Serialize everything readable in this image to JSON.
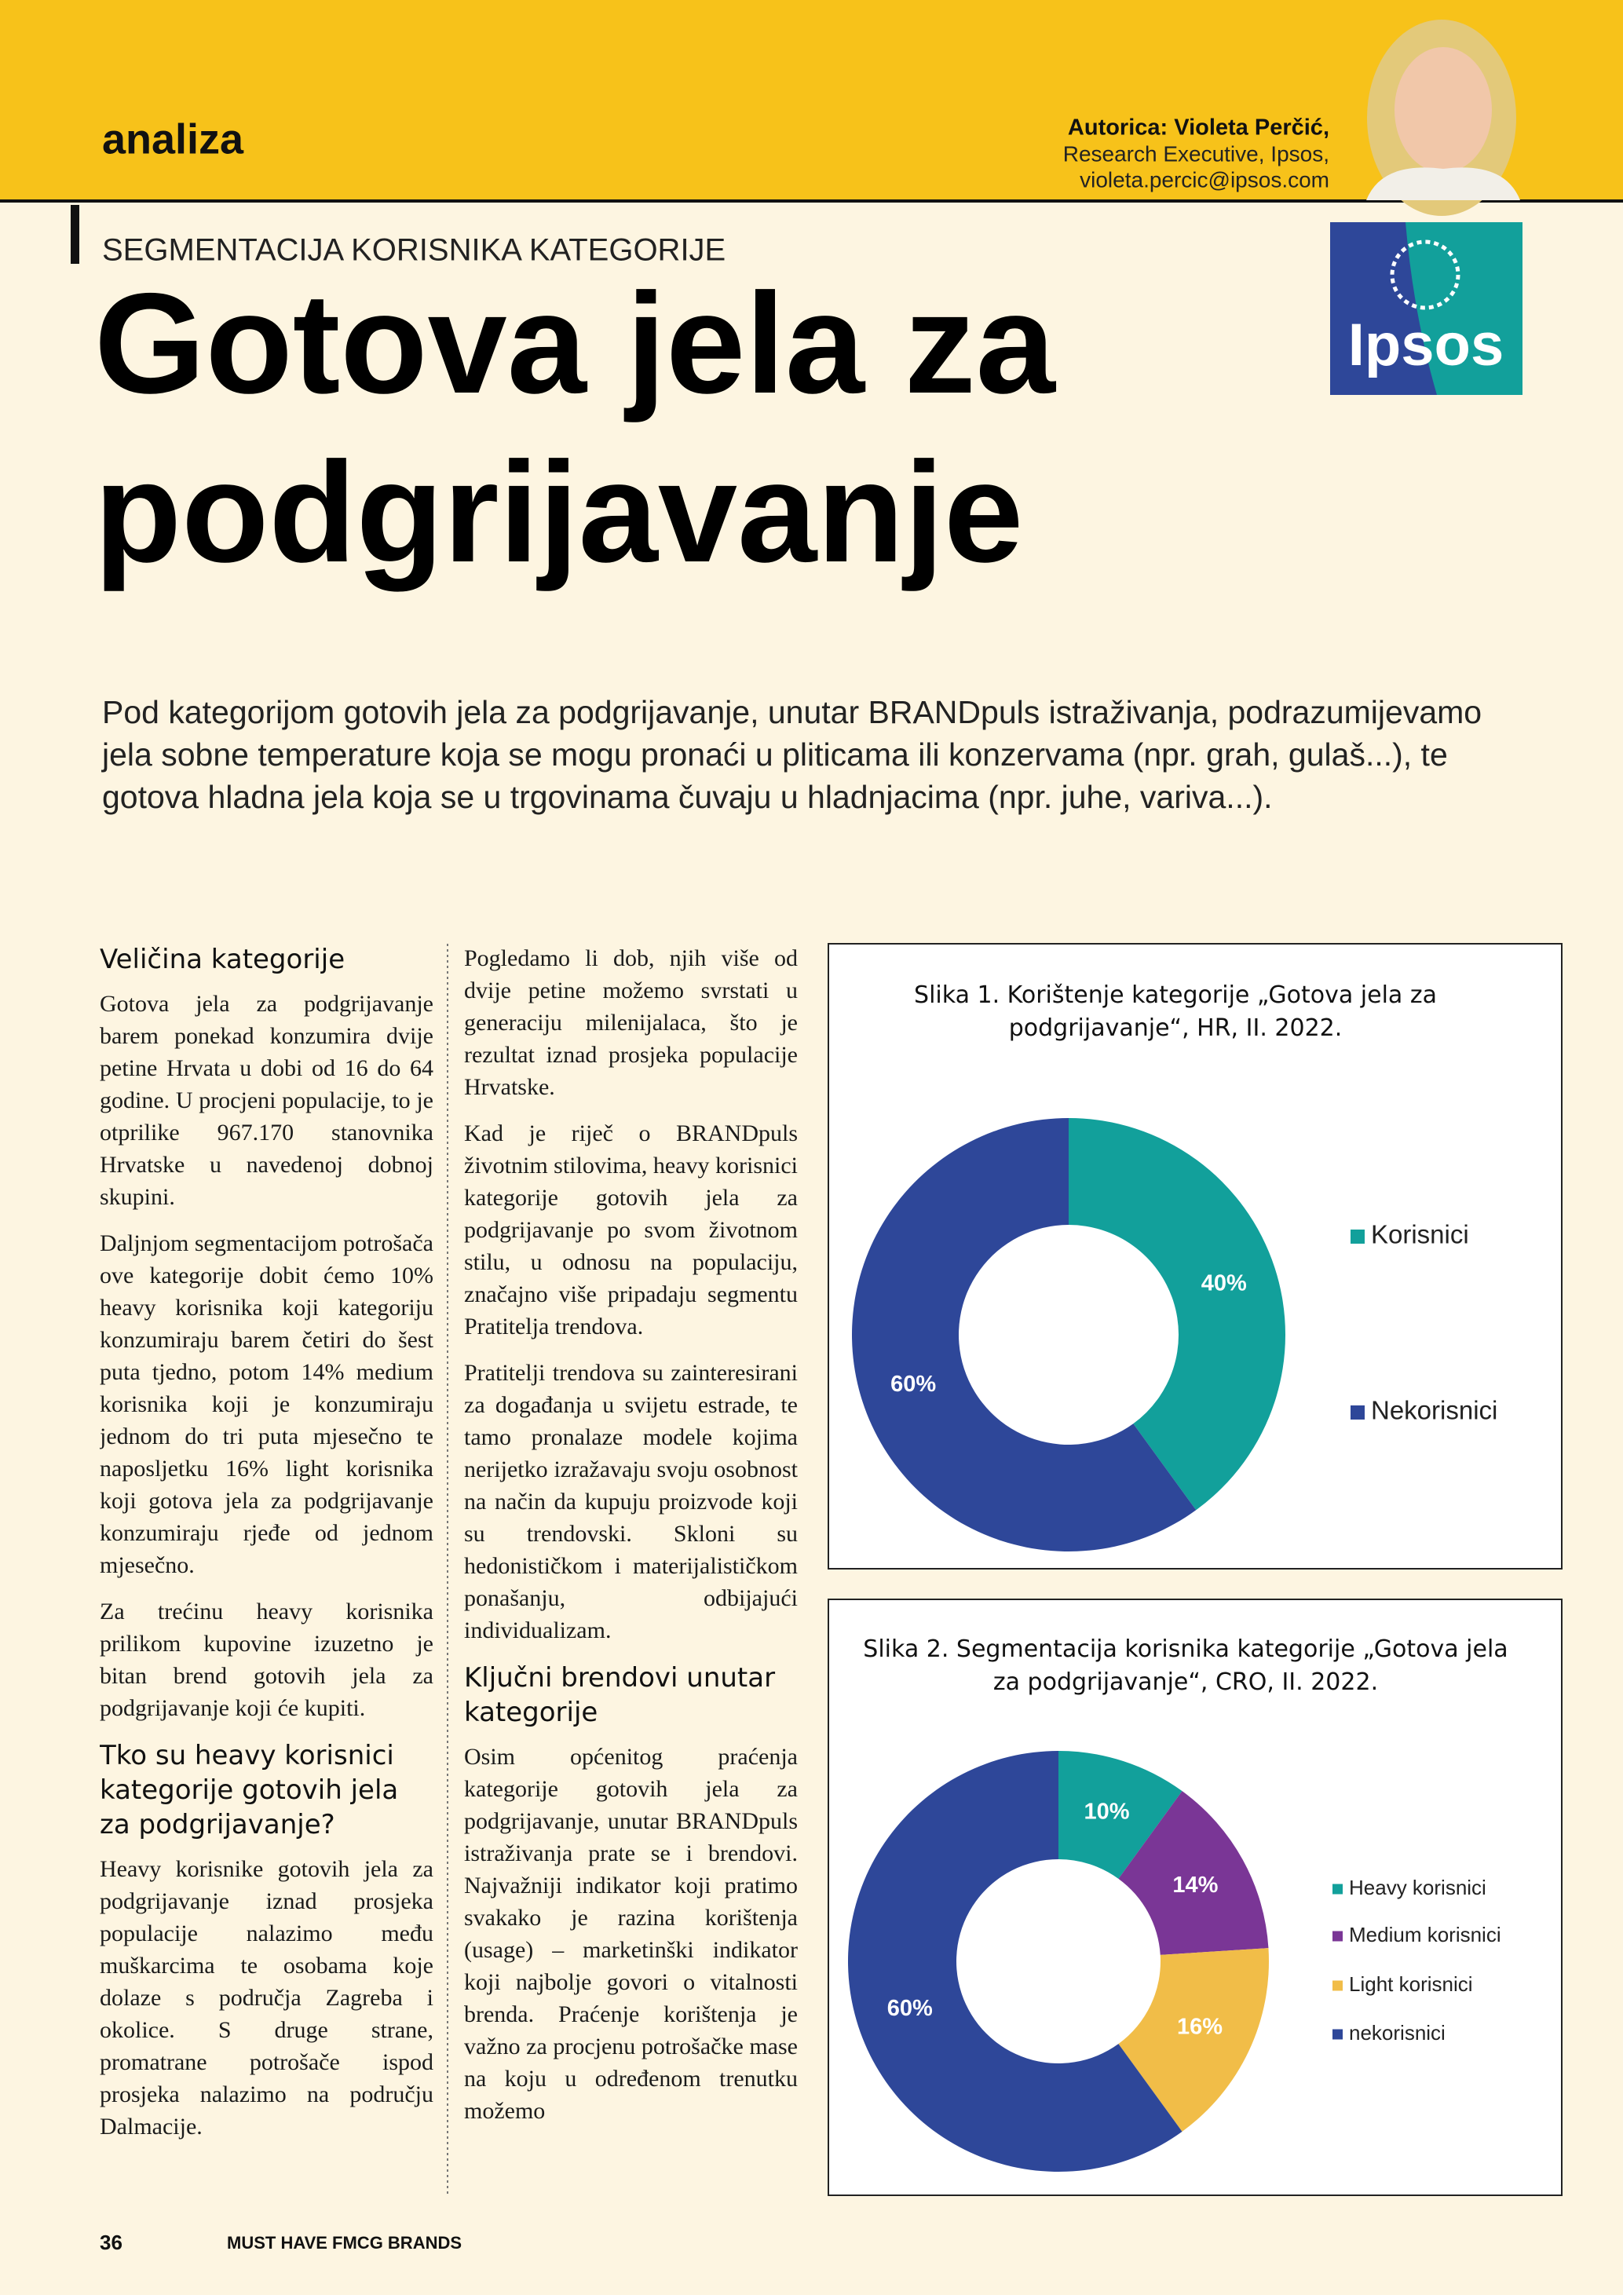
{
  "header": {
    "section": "analiza",
    "author_name": "Autorica: Violeta Perčić,",
    "author_role": "Research Executive, Ipsos,",
    "author_email": "violeta.percic@ipsos.com"
  },
  "logo": {
    "text": "Ipsos"
  },
  "kicker": "SEGMENTACIJA KORISNIKA KATEGORIJE",
  "title": [
    "Gotova jela za",
    "podgrijavanje"
  ],
  "intro": "Pod kategorijom gotovih jela za podgrijavanje, unutar BRANDpuls istraživanja, podrazumijevamo jela sobne temperature koja se mogu pronaći u pliticama ili konzervama (npr. grah, gulaš...), te gotova hladna jela koja se u trgovinama čuvaju u hladnjacima (npr. juhe, variva...).",
  "columns": [
    {
      "blocks": [
        {
          "heading": "Veličina kategorije"
        },
        {
          "text": "Gotova jela za podgrijavanje barem ponekad konzumira dvije petine Hrvata u dobi od 16 do 64 godine. U procjeni populacije, to je otprilike 967.170 stanovnika Hrvatske u navedenoj dobnoj skupini."
        },
        {
          "text": "Daljnjom segmentacijom potrošača ove kategorije dobit ćemo 10% heavy korisnika koji kategoriju konzumiraju barem četiri do šest puta tjedno, potom 14% medium korisnika koji je konzumiraju jednom do tri puta mjesečno te naposljetku 16% light korisnika koji gotova jela za podgrijavanje konzumiraju rjeđe od jednom mjesečno."
        },
        {
          "text": "Za trećinu heavy korisnika prilikom kupovine izuzetno je bitan brend gotovih jela za podgrijavanje koji će kupiti."
        },
        {
          "heading": "Tko su heavy korisnici kategorije gotovih jela za podgrijavanje?"
        },
        {
          "text": "Heavy korisnike gotovih jela za podgrijavanje iznad prosjeka populacije nalazimo među muškarcima te osobama koje dolaze s područja Zagreba i okolice. S druge strane, promatrane potrošače ispod prosjeka nalazimo na području Dalmacije."
        }
      ]
    },
    {
      "blocks": [
        {
          "text": "Pogledamo li dob, njih više od dvije petine možemo svrstati u generaciju milenijalaca, što je rezultat iznad prosjeka populacije Hrvatske."
        },
        {
          "text": "Kad je riječ o BRANDpuls životnim stilovima, heavy korisnici kategorije gotovih jela za podgrijavanje po svom životnom stilu, u odnosu na populaciju, značajno više pripadaju segmentu Pratitelja trendova."
        },
        {
          "text": "Pratitelji trendova su zainteresirani za događanja u svijetu estrade, te tamo pronalaze modele kojima nerijetko izražavaju svoju osobnost na način da kupuju proizvode koji su trendovski. Skloni su hedonističkom i materijalističkom ponašanju, odbijajući individualizam."
        },
        {
          "heading": "Ključni brendovi unutar kategorije"
        },
        {
          "text": "Osim općenitog praćenja kategorije gotovih jela za podgrijavanje, unutar BRANDpuls istraživanja prate se i brendovi. Najvažniji indikator koji pratimo svakako je razina korištenja (usage) – marketinški indikator koji najbolje govori o vitalnosti brenda. Praćenje korištenja je važno za procjenu potrošačke mase na koju u određenom trenutku možemo"
        }
      ]
    }
  ],
  "chart_data": [
    {
      "type": "donut",
      "title": "Slika 1. Korištenje kategorije „Gotova jela za podgrijavanje“, HR, II. 2022.",
      "categories": [
        "Korisnici",
        "Nekorisnici"
      ],
      "values": [
        40,
        60
      ],
      "value_labels": [
        "40%",
        "60%"
      ],
      "colors": [
        "#12a09b",
        "#2e4799"
      ],
      "legend": "right"
    },
    {
      "type": "donut",
      "title": "Slika 2. Segmentacija korisnika kategorije „Gotova jela za podgrijavanje“, CRO, II. 2022.",
      "categories": [
        "Heavy korisnici",
        "Medium korisnici",
        "Light korisnici",
        "nekorisnici"
      ],
      "values": [
        10,
        14,
        16,
        60
      ],
      "value_labels": [
        "10%",
        "14%",
        "16%",
        "60%"
      ],
      "colors": [
        "#12a09b",
        "#7a3696",
        "#f1bd48",
        "#2e4799"
      ],
      "legend": "right"
    }
  ],
  "footer": {
    "page": "36",
    "publication": "MUST HAVE FMCG BRANDS"
  }
}
